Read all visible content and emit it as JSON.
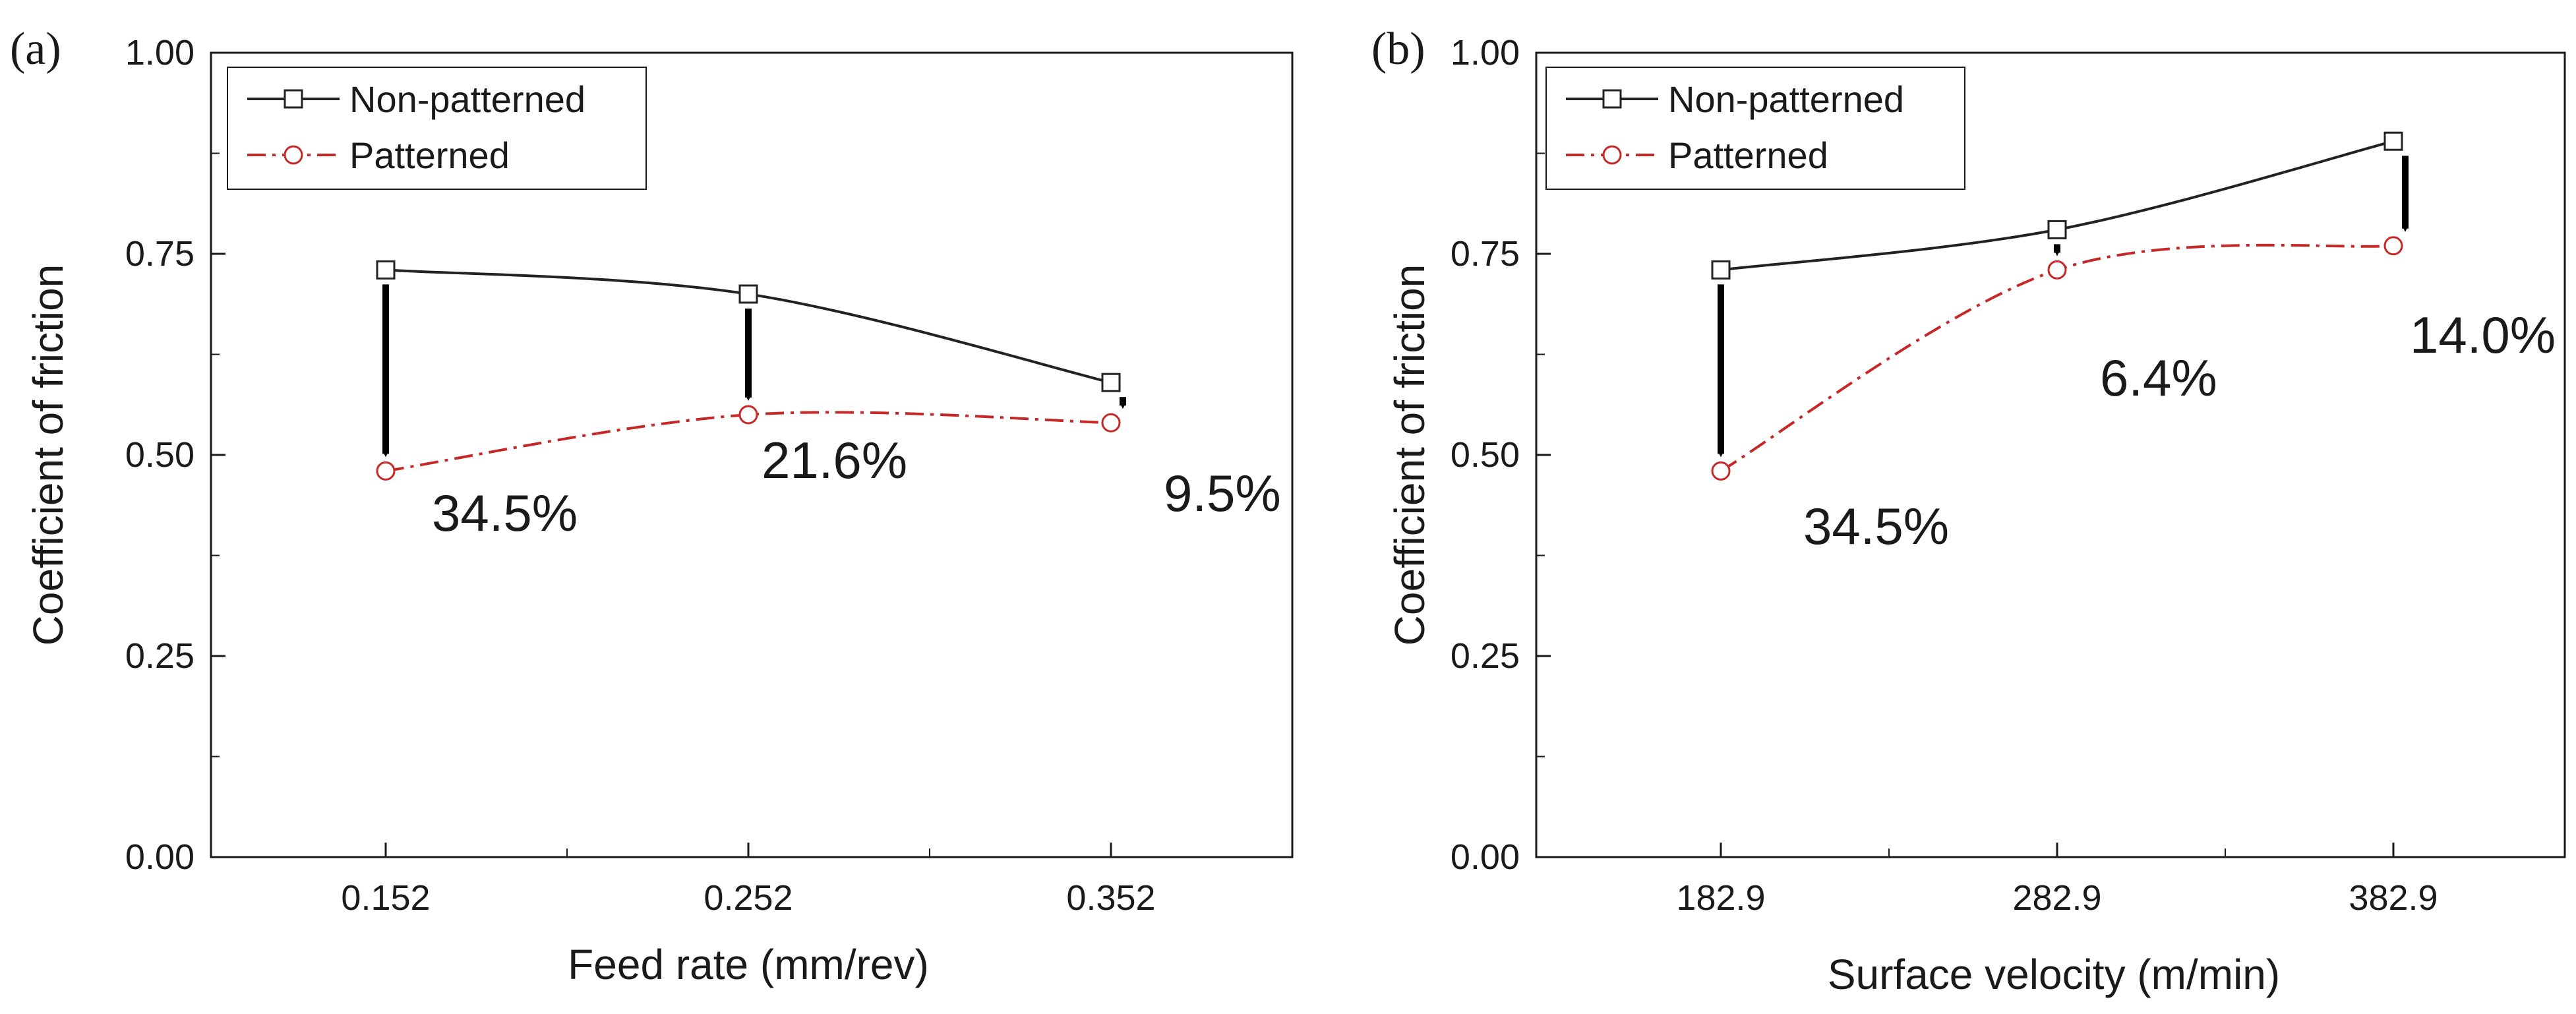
{
  "chart_data": [
    {
      "type": "line",
      "panel_label": "(a)",
      "title": "",
      "xlabel": "Feed rate (mm/rev)",
      "ylabel": "Coefficient of friction",
      "categories": [
        "0.152",
        "0.252",
        "0.352"
      ],
      "ylim": [
        0,
        1.0
      ],
      "yticks": [
        "0.00",
        "0.25",
        "0.50",
        "0.75",
        "1.00"
      ],
      "grid": false,
      "legend_position": "top-left",
      "series": [
        {
          "name": "Non-patterned",
          "values": [
            0.73,
            0.7,
            0.59
          ],
          "color": "#222222",
          "line_style": "solid",
          "marker": "square"
        },
        {
          "name": "Patterned",
          "values": [
            0.48,
            0.55,
            0.54
          ],
          "color": "#c62828",
          "line_style": "dash-dot",
          "marker": "circle"
        }
      ],
      "annotations": [
        "34.5%",
        "21.6%",
        "9.5%"
      ]
    },
    {
      "type": "line",
      "panel_label": "(b)",
      "title": "",
      "xlabel": "Surface velocity (m/min)",
      "ylabel": "Coefficient of friction",
      "categories": [
        "182.9",
        "282.9",
        "382.9"
      ],
      "ylim": [
        0,
        1.0
      ],
      "yticks": [
        "0.00",
        "0.25",
        "0.50",
        "0.75",
        "1.00"
      ],
      "grid": false,
      "legend_position": "top-left",
      "series": [
        {
          "name": "Non-patterned",
          "values": [
            0.73,
            0.78,
            0.89
          ],
          "color": "#222222",
          "line_style": "solid",
          "marker": "square"
        },
        {
          "name": "Patterned",
          "values": [
            0.48,
            0.73,
            0.76
          ],
          "color": "#c62828",
          "line_style": "dash-dot",
          "marker": "circle"
        }
      ],
      "annotations": [
        "34.5%",
        "6.4%",
        "14.0%"
      ]
    }
  ]
}
